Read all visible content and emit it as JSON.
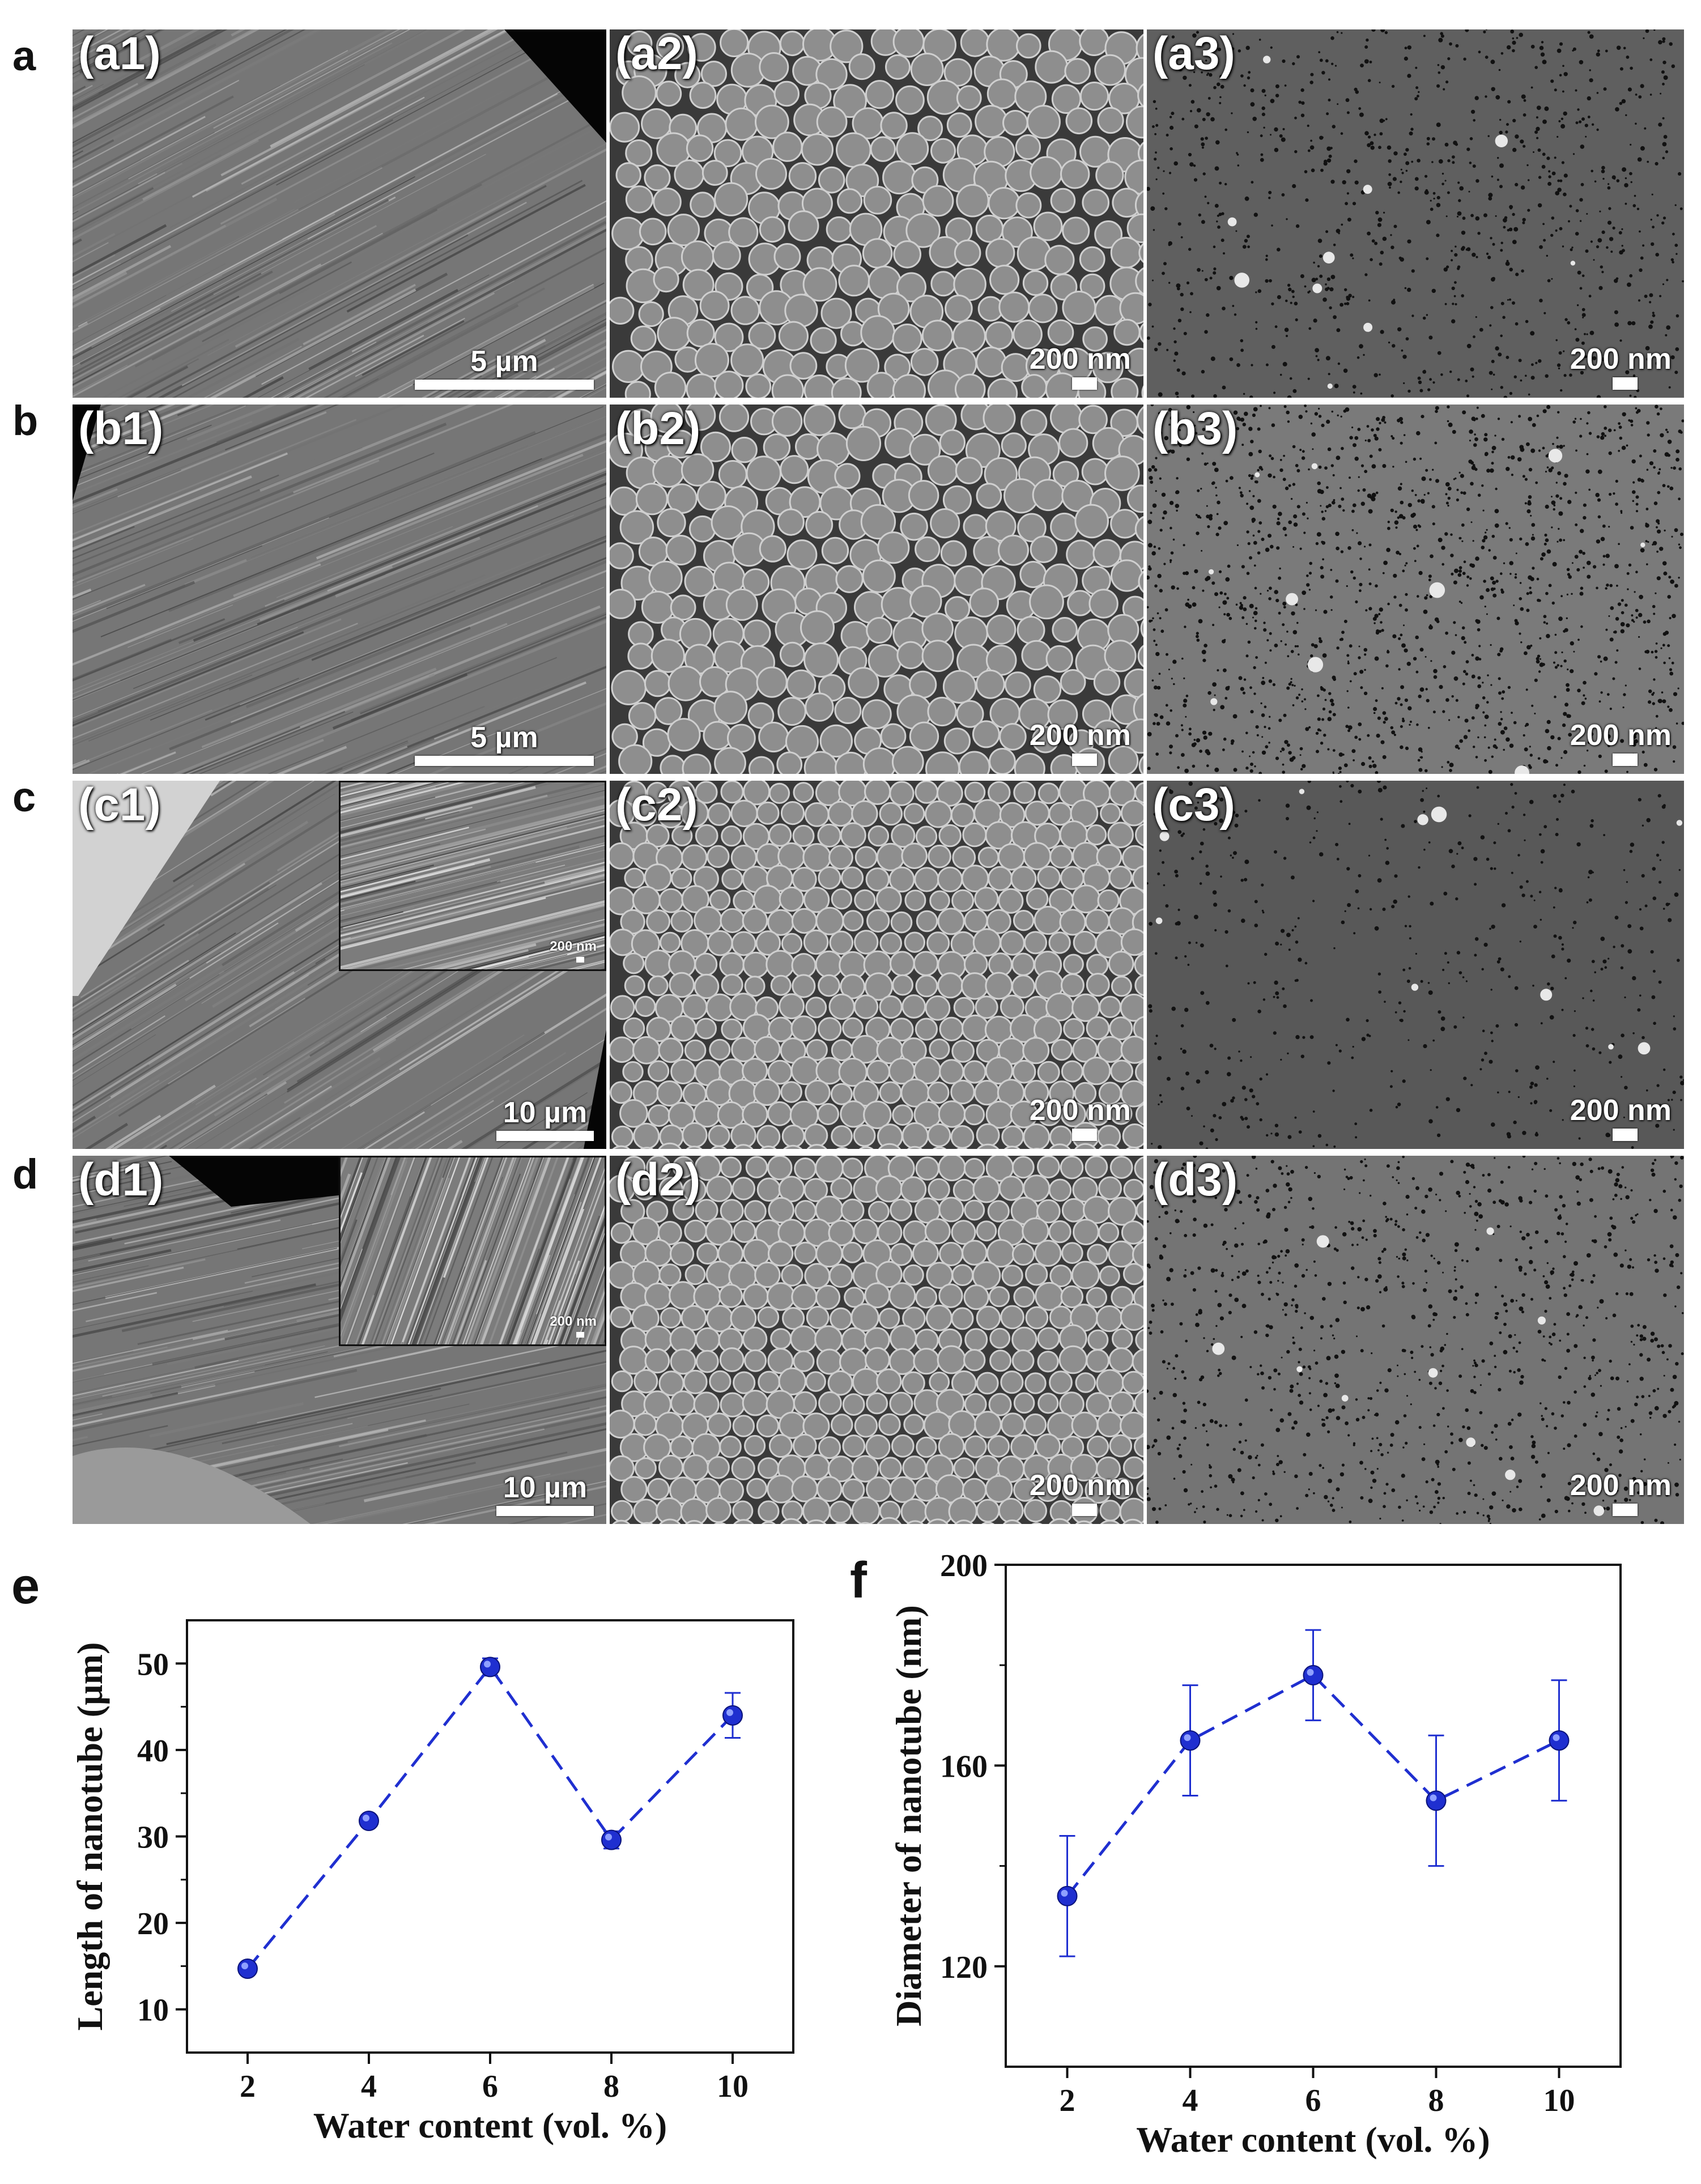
{
  "rows": [
    {
      "letter": "a",
      "panels": [
        {
          "label": "(a1)",
          "scale": "5 µm",
          "kind": "lines"
        },
        {
          "label": "(a2)",
          "scale": "200 nm",
          "kind": "spheres"
        },
        {
          "label": "(a3)",
          "scale": "200 nm",
          "kind": "pores"
        }
      ]
    },
    {
      "letter": "b",
      "panels": [
        {
          "label": "(b1)",
          "scale": "5 µm",
          "kind": "lines"
        },
        {
          "label": "(b2)",
          "scale": "200 nm",
          "kind": "spheres"
        },
        {
          "label": "(b3)",
          "scale": "200 nm",
          "kind": "pores"
        }
      ]
    },
    {
      "letter": "c",
      "panels": [
        {
          "label": "(c1)",
          "scale": "10 µm",
          "kind": "lines",
          "inset_scale": "200 nm"
        },
        {
          "label": "(c2)",
          "scale": "200 nm",
          "kind": "spheres"
        },
        {
          "label": "(c3)",
          "scale": "200 nm",
          "kind": "pores"
        }
      ]
    },
    {
      "letter": "d",
      "panels": [
        {
          "label": "(d1)",
          "scale": "10 µm",
          "kind": "lines",
          "inset_scale": "200 nm"
        },
        {
          "label": "(d2)",
          "scale": "200 nm",
          "kind": "spheres"
        },
        {
          "label": "(d3)",
          "scale": "200 nm",
          "kind": "pores"
        }
      ]
    }
  ],
  "chart_data": [
    {
      "panel": "e",
      "type": "line",
      "marker": "circle",
      "line_style": "dashed",
      "color": "#1f2fd0",
      "xlabel": "Water content (vol. %)",
      "ylabel": "Length of nanotube (µm)",
      "x": [
        2,
        4,
        6,
        8,
        10
      ],
      "y": [
        14.7,
        31.8,
        49.6,
        29.6,
        44.0
      ],
      "yerr": [
        0.4,
        0.5,
        1.0,
        1.0,
        2.6
      ],
      "xlim": [
        1,
        11
      ],
      "ylim": [
        5,
        55
      ],
      "xticks": [
        "2",
        "4",
        "6",
        "8",
        "10"
      ],
      "yticks": [
        "10",
        "20",
        "30",
        "40",
        "50"
      ],
      "grid": false
    },
    {
      "panel": "f",
      "type": "line",
      "marker": "circle",
      "line_style": "dashed",
      "color": "#1f2fd0",
      "xlabel": "Water content (vol. %)",
      "ylabel": "Diameter of nanotube (nm)",
      "x": [
        2,
        4,
        6,
        8,
        10
      ],
      "y": [
        134,
        165,
        178,
        153,
        165
      ],
      "yerr": [
        12,
        11,
        9,
        13,
        12
      ],
      "xlim": [
        1,
        11
      ],
      "ylim": [
        100,
        200
      ],
      "xticks": [
        "2",
        "4",
        "6",
        "8",
        "10"
      ],
      "yticks": [
        "120",
        "160",
        "200"
      ],
      "grid": false
    }
  ]
}
